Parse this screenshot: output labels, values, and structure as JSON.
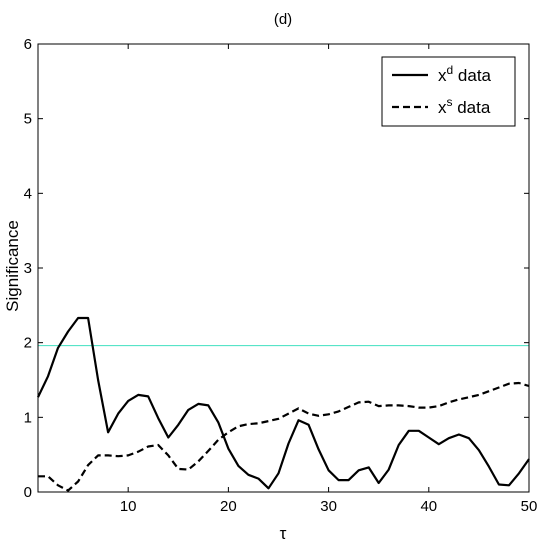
{
  "chart_data": {
    "type": "line",
    "title": "(d)",
    "xlabel": "τ",
    "ylabel": "Significance",
    "xlim": [
      1,
      50
    ],
    "ylim": [
      0,
      6
    ],
    "x_ticks": [
      "10",
      "20",
      "30",
      "40",
      "50"
    ],
    "y_ticks": [
      "0",
      "1",
      "2",
      "3",
      "4",
      "5",
      "6"
    ],
    "grid": false,
    "legend_position": "top-right",
    "legend": [
      {
        "base": "x",
        "sup": "d",
        "rest": " data",
        "style": "solid"
      },
      {
        "base": "x",
        "sup": "s",
        "rest": " data",
        "style": "dashed"
      }
    ],
    "threshold": {
      "value": 1.96,
      "color": "#40e0c0"
    },
    "x": [
      1,
      2,
      3,
      4,
      5,
      6,
      7,
      8,
      9,
      10,
      11,
      12,
      13,
      14,
      15,
      16,
      17,
      18,
      19,
      20,
      21,
      22,
      23,
      24,
      25,
      26,
      27,
      28,
      29,
      30,
      31,
      32,
      33,
      34,
      35,
      36,
      37,
      38,
      39,
      40,
      41,
      42,
      43,
      44,
      45,
      46,
      47,
      48,
      49,
      50
    ],
    "series": [
      {
        "style": "solid",
        "values": [
          1.27,
          1.55,
          1.93,
          2.15,
          2.33,
          2.33,
          1.5,
          0.8,
          1.05,
          1.22,
          1.3,
          1.28,
          0.99,
          0.73,
          0.9,
          1.1,
          1.18,
          1.16,
          0.93,
          0.58,
          0.35,
          0.23,
          0.18,
          0.05,
          0.25,
          0.65,
          0.96,
          0.9,
          0.57,
          0.29,
          0.16,
          0.16,
          0.29,
          0.33,
          0.12,
          0.3,
          0.63,
          0.82,
          0.82,
          0.73,
          0.64,
          0.72,
          0.77,
          0.72,
          0.56,
          0.34,
          0.1,
          0.09,
          0.25,
          0.44
        ]
      },
      {
        "style": "dashed",
        "values": [
          0.21,
          0.21,
          0.09,
          0.02,
          0.14,
          0.36,
          0.49,
          0.49,
          0.48,
          0.49,
          0.54,
          0.61,
          0.63,
          0.49,
          0.31,
          0.3,
          0.41,
          0.55,
          0.7,
          0.8,
          0.88,
          0.91,
          0.92,
          0.95,
          0.98,
          1.05,
          1.12,
          1.05,
          1.02,
          1.04,
          1.08,
          1.14,
          1.2,
          1.21,
          1.15,
          1.16,
          1.16,
          1.15,
          1.13,
          1.13,
          1.15,
          1.2,
          1.24,
          1.27,
          1.3,
          1.35,
          1.4,
          1.45,
          1.46,
          1.42
        ]
      }
    ]
  }
}
